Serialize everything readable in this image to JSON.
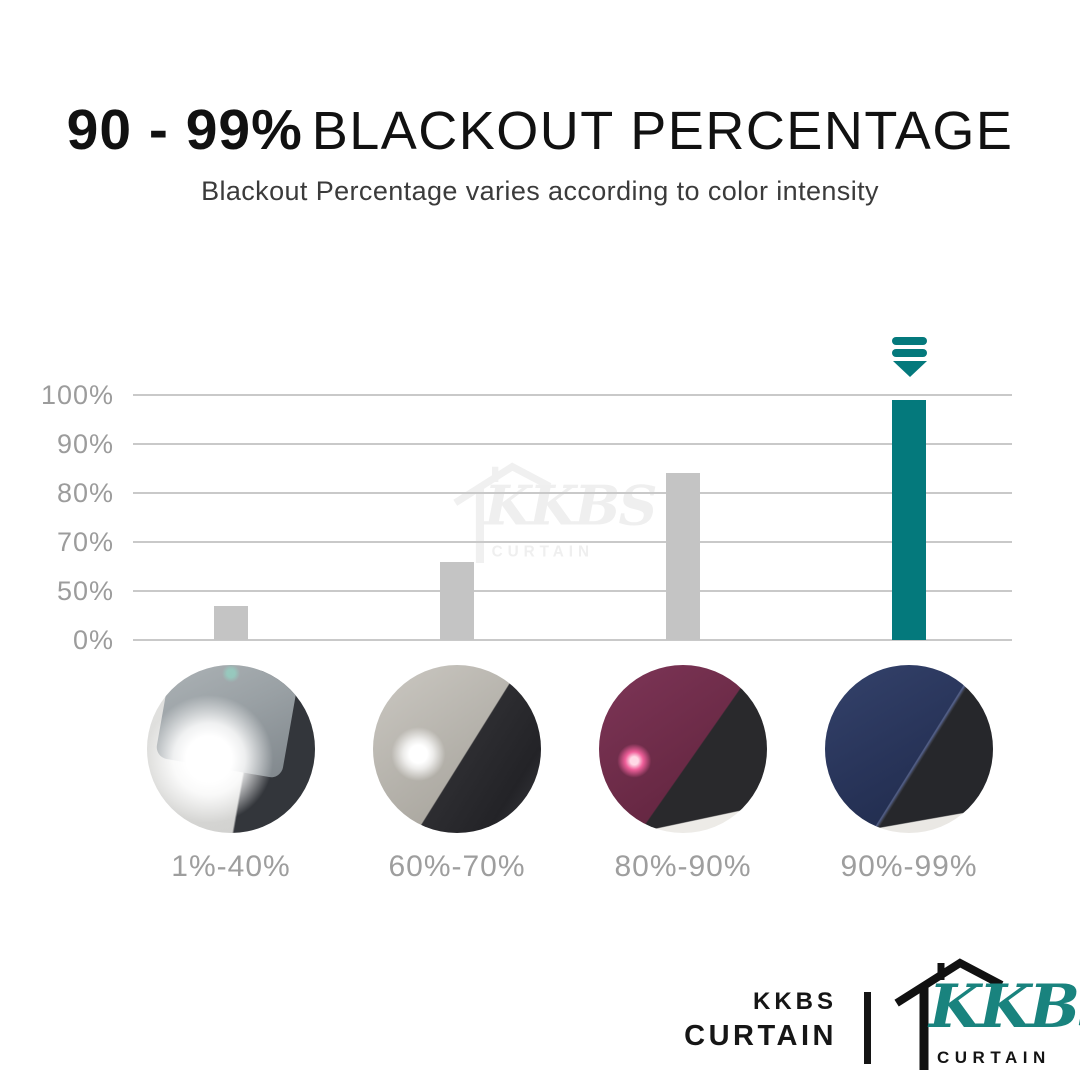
{
  "title": {
    "strong": "90 - 99%",
    "rest": "BLACKOUT PERCENTAGE"
  },
  "subtitle": "Blackout Percentage varies according to color intensity",
  "chart_data": {
    "type": "bar",
    "title": "90 - 99% blackout percentage by curtain color intensity",
    "categories": [
      "1%-40%",
      "60%-70%",
      "80%-90%",
      "90%-99%"
    ],
    "values": [
      35,
      62,
      84,
      99
    ],
    "y_ticks": [
      {
        "label": "0%",
        "value": 0
      },
      {
        "label": "50%",
        "value": 50
      },
      {
        "label": "70%",
        "value": 70
      },
      {
        "label": "80%",
        "value": 80
      },
      {
        "label": "90%",
        "value": 90
      },
      {
        "label": "100%",
        "value": 100
      }
    ],
    "ylim": [
      0,
      100
    ],
    "grid": true,
    "legend": "none",
    "bar_colors": [
      "#c4c4c4",
      "#c4c4c4",
      "#c4c4c4",
      "#04797c"
    ],
    "highlight_index": 3,
    "annotation": {
      "type": "down-arrow",
      "target_category": "90%-99%"
    }
  },
  "swatches": [
    {
      "fabric": "sheer-light-gray-over-phone-light",
      "fabric_color": "#99a0a4",
      "light_through": "large-white-glow"
    },
    {
      "fabric": "gray-over-phone-light",
      "fabric_color": "#b4b1aa",
      "light_through": "small-white-glow"
    },
    {
      "fabric": "burgundy-over-phone-light",
      "fabric_color": "#6e2c49",
      "light_through": "tiny-pink-dot"
    },
    {
      "fabric": "navy-over-phone-light",
      "fabric_color": "#283459",
      "light_through": "none"
    }
  ],
  "watermark": {
    "script": "KKBS",
    "sub": "CURTAIN"
  },
  "footer": {
    "brand_line1": "KKBS",
    "brand_line2": "CURTAIN",
    "logo_script": "KKBS",
    "logo_sub": "CURTAIN"
  },
  "colors": {
    "teal": "#04797c",
    "logo_teal": "#19837e",
    "bar_gray": "#c4c4c4",
    "grid": "#c9c9c9",
    "tick_text": "#9c9c9c",
    "label_text": "#9e9e9e"
  }
}
